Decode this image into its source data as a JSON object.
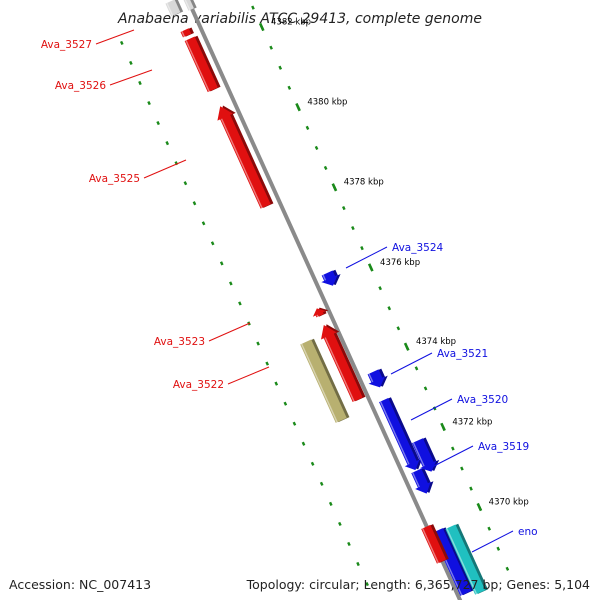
{
  "title": "Anabaena variabilis ATCC 29413, complete genome",
  "footer": {
    "accession": "Accession: NC_007413",
    "summary": "Topology: circular; Length: 6,365,727 bp; Genes: 5,104"
  },
  "colors": {
    "backbone": "#8a8a8a",
    "reverse_strand": "#e01010",
    "forward_strand": "#1010e0",
    "rrna": "#b8b070",
    "trna": "#20c0c0",
    "tick": "#1a8a1a",
    "neighbor": "#d8d8d8"
  },
  "ticks": [
    {
      "label": "4382 kbp"
    },
    {
      "label": "4380 kbp"
    },
    {
      "label": "4378 kbp"
    },
    {
      "label": "4376 kbp"
    },
    {
      "label": "4374 kbp"
    },
    {
      "label": "4372 kbp"
    },
    {
      "label": "4370 kbp"
    }
  ],
  "genes": [
    {
      "name": "Ava_3527",
      "strand": "reverse",
      "labeled": true
    },
    {
      "name": "Ava_3526",
      "strand": "reverse",
      "labeled": true
    },
    {
      "name": "Ava_3525",
      "strand": "reverse",
      "labeled": true
    },
    {
      "name": "Ava_3524",
      "strand": "forward",
      "labeled": true
    },
    {
      "name": "Ava_3523",
      "strand": "reverse",
      "labeled": true
    },
    {
      "name": "Ava_3522",
      "strand": "reverse",
      "labeled": true
    },
    {
      "name": "Ava_3521",
      "strand": "forward",
      "labeled": true
    },
    {
      "name": "Ava_3520",
      "strand": "forward",
      "labeled": true
    },
    {
      "name": "Ava_3519",
      "strand": "forward",
      "labeled": true
    },
    {
      "name": "eno",
      "strand": "forward",
      "labeled": true
    }
  ]
}
